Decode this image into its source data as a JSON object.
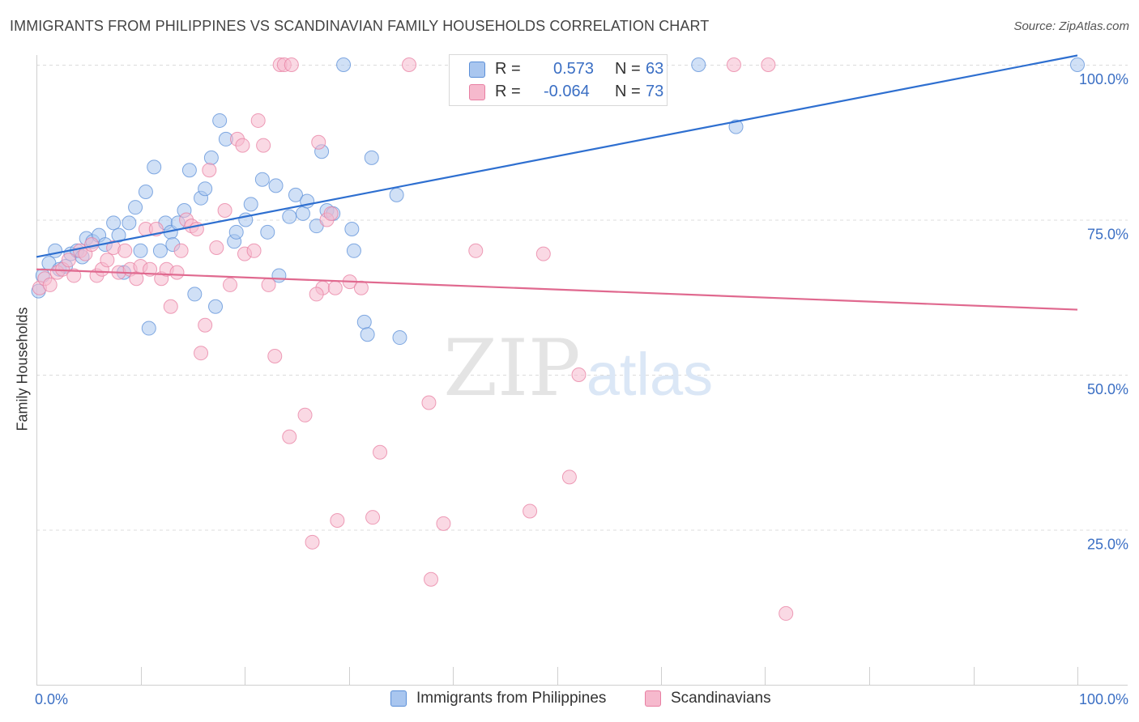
{
  "header": {
    "title": "IMMIGRANTS FROM PHILIPPINES VS SCANDINAVIAN FAMILY HOUSEHOLDS CORRELATION CHART",
    "source": "Source: ZipAtlas.com"
  },
  "watermark": {
    "zip": "ZIP",
    "atlas": "atlas"
  },
  "legend": {
    "rows": [
      {
        "r_label": "R =",
        "r_value": "0.573",
        "n_label": "N =",
        "n_value": "63",
        "color": "#a9c6ef"
      },
      {
        "r_label": "R =",
        "r_value": "-0.064",
        "n_label": "N =",
        "n_value": "73",
        "color": "#f6b9cd"
      }
    ]
  },
  "bottom_legend": [
    {
      "label": "Immigrants from Philippines",
      "color": "#a9c6ef"
    },
    {
      "label": "Scandinavians",
      "color": "#f6b9cd"
    }
  ],
  "chart_data": {
    "type": "scatter",
    "title": "IMMIGRANTS FROM PHILIPPINES VS SCANDINAVIAN FAMILY HOUSEHOLDS CORRELATION CHART",
    "xlabel": "",
    "ylabel": "Family Households",
    "xlim": [
      0,
      100
    ],
    "ylim": [
      0,
      103
    ],
    "x_tick_labels": [
      "0.0%",
      "100.0%"
    ],
    "y_ticks": [
      25,
      50,
      75,
      100
    ],
    "y_tick_labels": [
      "25.0%",
      "50.0%",
      "75.0%",
      "100.0%"
    ],
    "grid": true,
    "legend_position": "top-center",
    "series": [
      {
        "name": "Immigrants from Philippines",
        "color": "#5b8fd8",
        "fill": "#a9c6ef",
        "r": 0.573,
        "n": 63,
        "trend": {
          "x": [
            0,
            100
          ],
          "y": [
            69.0,
            101.5
          ],
          "color": "#2e6fd0"
        },
        "points": [
          [
            0.2,
            63.5
          ],
          [
            0.6,
            66.0
          ],
          [
            1.2,
            68.0
          ],
          [
            1.8,
            70.0
          ],
          [
            2.2,
            67.0
          ],
          [
            2.8,
            67.5
          ],
          [
            3.3,
            69.5
          ],
          [
            3.9,
            70.0
          ],
          [
            4.4,
            69.0
          ],
          [
            4.8,
            72.0
          ],
          [
            5.4,
            71.5
          ],
          [
            6.0,
            72.5
          ],
          [
            6.6,
            71.0
          ],
          [
            7.4,
            74.5
          ],
          [
            7.9,
            72.5
          ],
          [
            8.4,
            66.5
          ],
          [
            8.9,
            74.5
          ],
          [
            9.5,
            77.0
          ],
          [
            10.0,
            70.0
          ],
          [
            10.5,
            79.5
          ],
          [
            10.8,
            57.5
          ],
          [
            11.3,
            83.5
          ],
          [
            11.9,
            70.0
          ],
          [
            12.4,
            74.5
          ],
          [
            12.9,
            73.0
          ],
          [
            13.1,
            71.0
          ],
          [
            13.6,
            74.5
          ],
          [
            14.2,
            76.5
          ],
          [
            14.7,
            83.0
          ],
          [
            15.2,
            63.0
          ],
          [
            15.8,
            78.5
          ],
          [
            16.2,
            80.0
          ],
          [
            16.8,
            85.0
          ],
          [
            17.2,
            61.0
          ],
          [
            17.6,
            91.0
          ],
          [
            18.2,
            88.0
          ],
          [
            19.0,
            71.5
          ],
          [
            19.2,
            73.0
          ],
          [
            20.1,
            75.0
          ],
          [
            20.6,
            77.5
          ],
          [
            21.7,
            81.5
          ],
          [
            22.2,
            73.0
          ],
          [
            23.0,
            80.5
          ],
          [
            23.3,
            66.0
          ],
          [
            24.3,
            75.5
          ],
          [
            24.9,
            79.0
          ],
          [
            25.6,
            76.0
          ],
          [
            26.0,
            78.0
          ],
          [
            26.9,
            74.0
          ],
          [
            27.4,
            86.0
          ],
          [
            27.9,
            76.5
          ],
          [
            28.5,
            76.0
          ],
          [
            30.3,
            73.5
          ],
          [
            30.5,
            70.0
          ],
          [
            31.5,
            58.5
          ],
          [
            31.8,
            56.5
          ],
          [
            32.2,
            85.0
          ],
          [
            34.6,
            79.0
          ],
          [
            34.9,
            56.0
          ],
          [
            29.5,
            100.0
          ],
          [
            63.6,
            100.0
          ],
          [
            67.2,
            90.0
          ],
          [
            100.0,
            100.0
          ]
        ]
      },
      {
        "name": "Scandinavians",
        "color": "#e87fa2",
        "fill": "#f6b9cd",
        "r": -0.064,
        "n": 73,
        "trend": {
          "x": [
            0,
            100
          ],
          "y": [
            67.0,
            60.5
          ],
          "color": "#e0698f"
        },
        "points": [
          [
            0.3,
            64.0
          ],
          [
            0.8,
            65.5
          ],
          [
            1.3,
            64.5
          ],
          [
            2.0,
            66.5
          ],
          [
            2.5,
            67.0
          ],
          [
            3.1,
            68.5
          ],
          [
            3.6,
            66.0
          ],
          [
            4.2,
            70.0
          ],
          [
            4.7,
            69.5
          ],
          [
            5.3,
            71.0
          ],
          [
            5.8,
            66.0
          ],
          [
            6.3,
            67.0
          ],
          [
            6.8,
            68.5
          ],
          [
            7.4,
            70.5
          ],
          [
            7.9,
            66.5
          ],
          [
            8.5,
            70.0
          ],
          [
            9.0,
            67.0
          ],
          [
            9.6,
            65.5
          ],
          [
            10.0,
            67.5
          ],
          [
            10.5,
            73.5
          ],
          [
            10.9,
            67.0
          ],
          [
            11.5,
            73.5
          ],
          [
            12.0,
            65.5
          ],
          [
            12.5,
            67.0
          ],
          [
            12.9,
            61.0
          ],
          [
            13.5,
            66.5
          ],
          [
            13.9,
            70.0
          ],
          [
            14.4,
            75.0
          ],
          [
            14.9,
            74.0
          ],
          [
            15.4,
            73.5
          ],
          [
            15.8,
            53.5
          ],
          [
            16.2,
            58.0
          ],
          [
            16.6,
            83.0
          ],
          [
            17.3,
            70.5
          ],
          [
            18.1,
            76.5
          ],
          [
            18.6,
            64.5
          ],
          [
            19.3,
            88.0
          ],
          [
            19.8,
            87.0
          ],
          [
            20.0,
            69.5
          ],
          [
            20.9,
            70.0
          ],
          [
            21.3,
            91.0
          ],
          [
            21.8,
            87.0
          ],
          [
            22.3,
            64.5
          ],
          [
            22.9,
            53.0
          ],
          [
            23.4,
            100.0
          ],
          [
            23.8,
            100.0
          ],
          [
            24.3,
            40.0
          ],
          [
            25.8,
            43.5
          ],
          [
            26.5,
            23.0
          ],
          [
            27.1,
            87.5
          ],
          [
            27.5,
            64.0
          ],
          [
            27.9,
            75.0
          ],
          [
            28.3,
            76.0
          ],
          [
            28.7,
            64.0
          ],
          [
            28.9,
            26.5
          ],
          [
            30.1,
            65.0
          ],
          [
            31.2,
            64.0
          ],
          [
            32.3,
            27.0
          ],
          [
            33.0,
            37.5
          ],
          [
            35.8,
            100.0
          ],
          [
            37.9,
            17.0
          ],
          [
            39.1,
            26.0
          ],
          [
            37.7,
            45.5
          ],
          [
            42.2,
            70.0
          ],
          [
            47.4,
            28.0
          ],
          [
            48.7,
            69.5
          ],
          [
            51.2,
            33.5
          ],
          [
            52.1,
            50.0
          ],
          [
            67.0,
            100.0
          ],
          [
            70.3,
            100.0
          ],
          [
            72.0,
            11.5
          ],
          [
            26.9,
            63.0
          ],
          [
            24.5,
            100.0
          ]
        ]
      }
    ]
  }
}
